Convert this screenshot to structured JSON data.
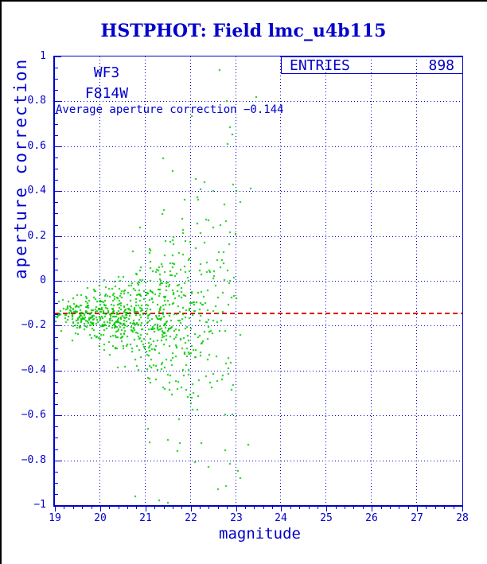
{
  "page": {
    "background": "#ffffff",
    "frame_border_color": "#000000"
  },
  "header": {
    "title": "HSTPHOT: Field lmc_u4b115",
    "title_color": "#0000cc"
  },
  "annotations": {
    "camera": "WF3",
    "filter": "F814W",
    "average_text": "Average aperture correction −0.144",
    "entries_label": "ENTRIES",
    "entries_value": "898"
  },
  "chart_data": {
    "type": "scatter",
    "title": "HSTPHOT: Field lmc_u4b115",
    "xlabel": "magnitude",
    "ylabel": "aperture correction",
    "xlim": [
      19,
      28
    ],
    "ylim": [
      -1,
      1
    ],
    "x_major_ticks": [
      19,
      20,
      21,
      22,
      23,
      24,
      25,
      26,
      27,
      28
    ],
    "x_tick_labels": [
      "19",
      "20",
      "21",
      "22",
      "23",
      "24",
      "25",
      "26",
      "27",
      "28"
    ],
    "x_minor_step": 0.2,
    "y_major_ticks": [
      -1,
      -0.8,
      -0.6,
      -0.4,
      -0.2,
      0,
      0.2,
      0.4,
      0.6,
      0.8,
      1
    ],
    "y_tick_labels": [
      "−1",
      "−0.8",
      "−0.6",
      "−0.4",
      "−0.2",
      "0",
      "0.2",
      "0.4",
      "0.6",
      "0.8",
      "1"
    ],
    "y_minor_step": 0.05,
    "grid": true,
    "legend_position": "top-right",
    "grid_color": "#0000cc",
    "axis_color": "#0000cc",
    "text_color": "#0000cc",
    "marker_color": "#00c800",
    "marker_size_px": 2,
    "n_entries": 898,
    "average_line": {
      "value": -0.144,
      "color": "#dd0000",
      "style": "dashed"
    },
    "cloud_model": {
      "comment": "898 green points: tight band near y=-0.15 at mag 19-21, spread widening sharply for mag>21.5, range mag 19-23.5",
      "seed": 42,
      "x_mean": 20.9,
      "x_sd": 1.1,
      "x_min": 19.02,
      "x_max": 23.3,
      "y_center": -0.155,
      "spread_base": 0.032,
      "spread_growth": 0.62,
      "tail_prob": 0.1,
      "tail_scale": 2.2,
      "y_min": -0.995,
      "y_max": 0.95
    },
    "outlier_points": [
      [
        22.63,
        0.94
      ],
      [
        23.45,
        0.82
      ],
      [
        22.82,
        0.61
      ],
      [
        22.8,
        0.8
      ],
      [
        22.3,
        0.44
      ],
      [
        23.33,
        0.41
      ],
      [
        23.0,
        0.4
      ],
      [
        22.5,
        0.4
      ],
      [
        23.1,
        0.35
      ],
      [
        22.4,
        0.27
      ],
      [
        22.66,
        0.25
      ],
      [
        21.5,
        -0.99
      ],
      [
        20.78,
        -0.96
      ],
      [
        21.3,
        -0.98
      ],
      [
        22.6,
        -0.93
      ],
      [
        23.1,
        -0.88
      ],
      [
        22.4,
        -0.83
      ],
      [
        22.1,
        -0.81
      ],
      [
        21.7,
        -0.76
      ],
      [
        21.1,
        -0.72
      ],
      [
        21.5,
        -0.71
      ]
    ]
  }
}
